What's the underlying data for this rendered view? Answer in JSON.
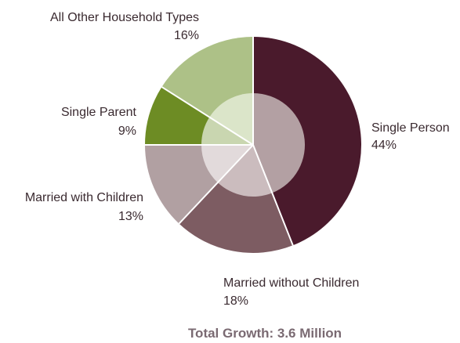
{
  "chart_data": {
    "type": "pie",
    "title": "",
    "footer": "Total Growth: 3.6 Million",
    "slices": [
      {
        "label": "Single Person",
        "value": 44,
        "pct_label": "44%",
        "color": "#4a1a2c",
        "inner_color": "#b3a0a3"
      },
      {
        "label": "Married without Children",
        "value": 18,
        "pct_label": "18%",
        "color": "#7d5c62",
        "inner_color": "#cbbcbe"
      },
      {
        "label": "Married with Children",
        "value": 13,
        "pct_label": "13%",
        "color": "#b1a0a2",
        "inner_color": "#e2dadb"
      },
      {
        "label": "Single Parent",
        "value": 9,
        "pct_label": "9%",
        "color": "#6d8c24",
        "inner_color": "#c9d6b0"
      },
      {
        "label": "All Other Household Types",
        "value": 16,
        "pct_label": "16%",
        "color": "#adc187",
        "inner_color": "#dbe5c9"
      }
    ],
    "legend": "none",
    "grid": false
  }
}
